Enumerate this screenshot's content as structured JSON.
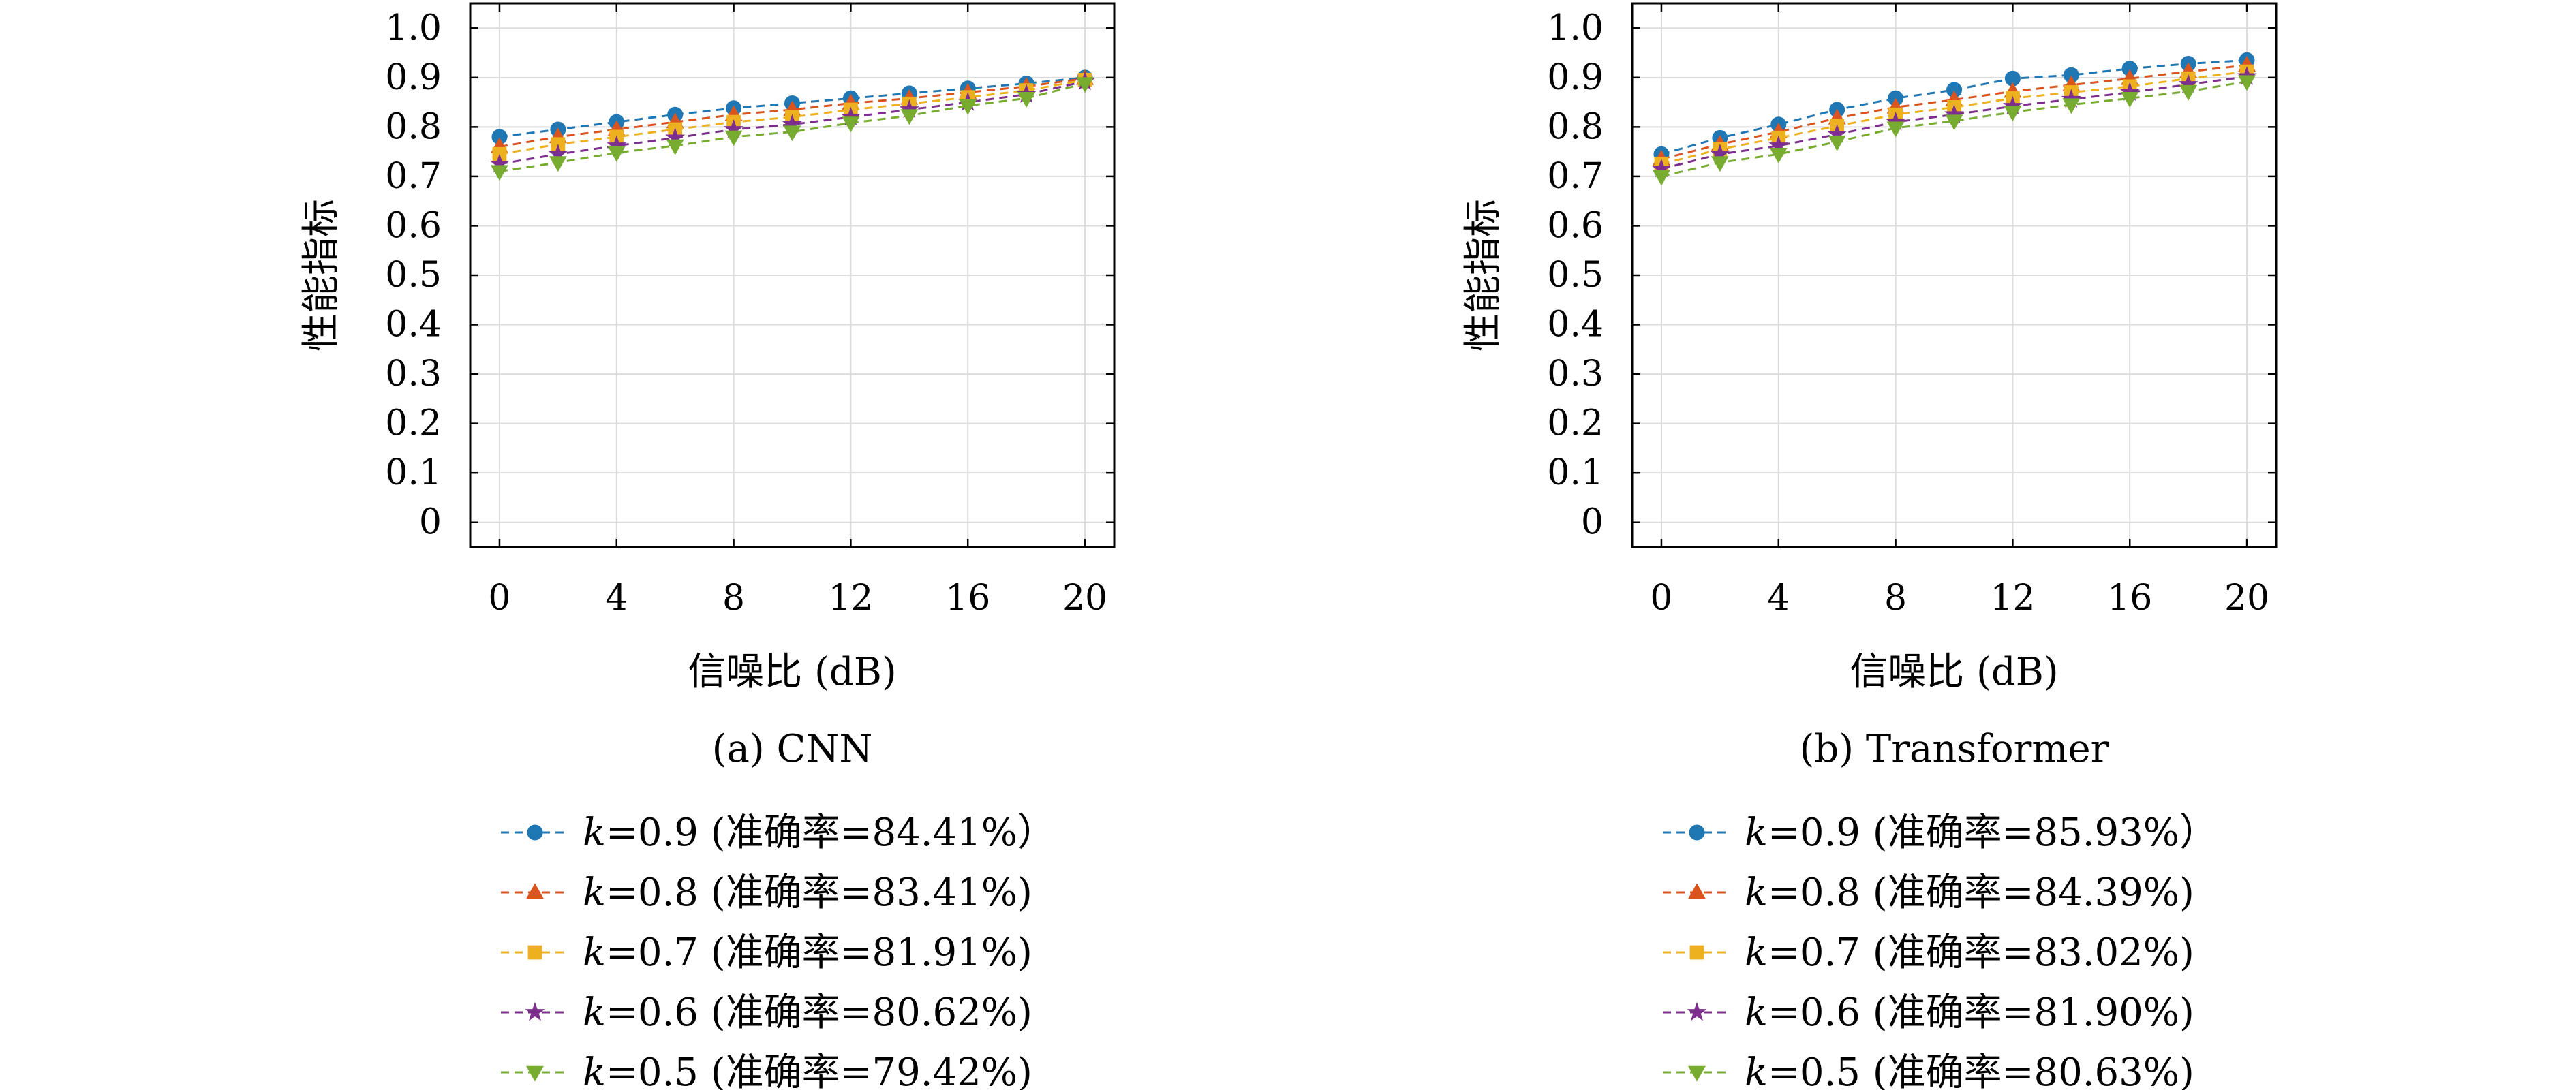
{
  "colors": {
    "k09": "#1f77b4",
    "k08": "#d9541e",
    "k07": "#edb120",
    "k06": "#7e2f8e",
    "k05": "#77ac30"
  },
  "chart_data": [
    {
      "type": "line",
      "caption": "(a) CNN",
      "xlabel": "信噪比 (dB)",
      "ylabel": "性能指标",
      "xlim": [
        -1,
        21
      ],
      "ylim": [
        -0.05,
        1.05
      ],
      "xticks": [
        0,
        4,
        8,
        12,
        16,
        20
      ],
      "xtick_labels": [
        "0",
        "4",
        "8",
        "12",
        "16",
        "20"
      ],
      "yticks": [
        0,
        0.1,
        0.2,
        0.3,
        0.4,
        0.5,
        0.6,
        0.7,
        0.8,
        0.9,
        1.0
      ],
      "ytick_labels": [
        "0",
        "0.1",
        "0.2",
        "0.3",
        "0.4",
        "0.5",
        "0.6",
        "0.7",
        "0.8",
        "0.9",
        "1.0"
      ],
      "grid": true,
      "legend_position": "below",
      "x": [
        0,
        2,
        4,
        6,
        8,
        10,
        12,
        14,
        16,
        18,
        20
      ],
      "series": [
        {
          "legend_k": "k",
          "legend_rest": "=0.9 (准确率=84.41%）",
          "marker": "circle",
          "color_key": "k09",
          "values": [
            0.78,
            0.795,
            0.81,
            0.825,
            0.838,
            0.848,
            0.858,
            0.868,
            0.878,
            0.888,
            0.9
          ]
        },
        {
          "legend_k": "k",
          "legend_rest": "=0.8 (准确率=83.41%)",
          "marker": "triangle-up",
          "color_key": "k08",
          "values": [
            0.76,
            0.78,
            0.795,
            0.81,
            0.825,
            0.835,
            0.848,
            0.858,
            0.87,
            0.882,
            0.898
          ]
        },
        {
          "legend_k": "k",
          "legend_rest": "=0.7 (准确率=81.91%)",
          "marker": "square",
          "color_key": "k07",
          "values": [
            0.745,
            0.765,
            0.78,
            0.795,
            0.81,
            0.82,
            0.835,
            0.847,
            0.86,
            0.874,
            0.895
          ]
        },
        {
          "legend_k": "k",
          "legend_rest": "=0.6 (准确率=80.62%)",
          "marker": "star",
          "color_key": "k06",
          "values": [
            0.725,
            0.745,
            0.762,
            0.778,
            0.795,
            0.805,
            0.82,
            0.835,
            0.85,
            0.866,
            0.892
          ]
        },
        {
          "legend_k": "k",
          "legend_rest": "=0.5 (准确率=79.42%)",
          "marker": "triangle-down",
          "color_key": "k05",
          "values": [
            0.71,
            0.728,
            0.748,
            0.762,
            0.78,
            0.79,
            0.808,
            0.823,
            0.843,
            0.858,
            0.888
          ]
        }
      ]
    },
    {
      "type": "line",
      "caption": "(b) Transformer",
      "xlabel": "信噪比 (dB)",
      "ylabel": "性能指标",
      "xlim": [
        -1,
        21
      ],
      "ylim": [
        -0.05,
        1.05
      ],
      "xticks": [
        0,
        4,
        8,
        12,
        16,
        20
      ],
      "xtick_labels": [
        "0",
        "4",
        "8",
        "12",
        "16",
        "20"
      ],
      "yticks": [
        0,
        0.1,
        0.2,
        0.3,
        0.4,
        0.5,
        0.6,
        0.7,
        0.8,
        0.9,
        1.0
      ],
      "ytick_labels": [
        "0",
        "0.1",
        "0.2",
        "0.3",
        "0.4",
        "0.5",
        "0.6",
        "0.7",
        "0.8",
        "0.9",
        "1.0"
      ],
      "grid": true,
      "legend_position": "below",
      "x": [
        0,
        2,
        4,
        6,
        8,
        10,
        12,
        14,
        16,
        18,
        20
      ],
      "series": [
        {
          "legend_k": "k",
          "legend_rest": "=0.9 (准确率=85.93%）",
          "marker": "circle",
          "color_key": "k09",
          "values": [
            0.745,
            0.778,
            0.805,
            0.835,
            0.858,
            0.875,
            0.898,
            0.905,
            0.918,
            0.928,
            0.935
          ]
        },
        {
          "legend_k": "k",
          "legend_rest": "=0.8 (准确率=84.39%)",
          "marker": "triangle-up",
          "color_key": "k08",
          "values": [
            0.735,
            0.765,
            0.79,
            0.818,
            0.84,
            0.855,
            0.872,
            0.885,
            0.898,
            0.912,
            0.925
          ]
        },
        {
          "legend_k": "k",
          "legend_rest": "=0.7 (准确率=83.02%)",
          "marker": "square",
          "color_key": "k07",
          "values": [
            0.725,
            0.755,
            0.778,
            0.802,
            0.825,
            0.84,
            0.858,
            0.87,
            0.882,
            0.898,
            0.912
          ]
        },
        {
          "legend_k": "k",
          "legend_rest": "=0.6 (准确率=81.90%)",
          "marker": "star",
          "color_key": "k06",
          "values": [
            0.715,
            0.745,
            0.762,
            0.785,
            0.81,
            0.825,
            0.842,
            0.856,
            0.87,
            0.886,
            0.902
          ]
        },
        {
          "legend_k": "k",
          "legend_rest": "=0.5 (准确率=80.63%)",
          "marker": "triangle-down",
          "color_key": "k05",
          "values": [
            0.7,
            0.728,
            0.745,
            0.77,
            0.798,
            0.812,
            0.83,
            0.845,
            0.858,
            0.872,
            0.892
          ]
        }
      ]
    }
  ]
}
